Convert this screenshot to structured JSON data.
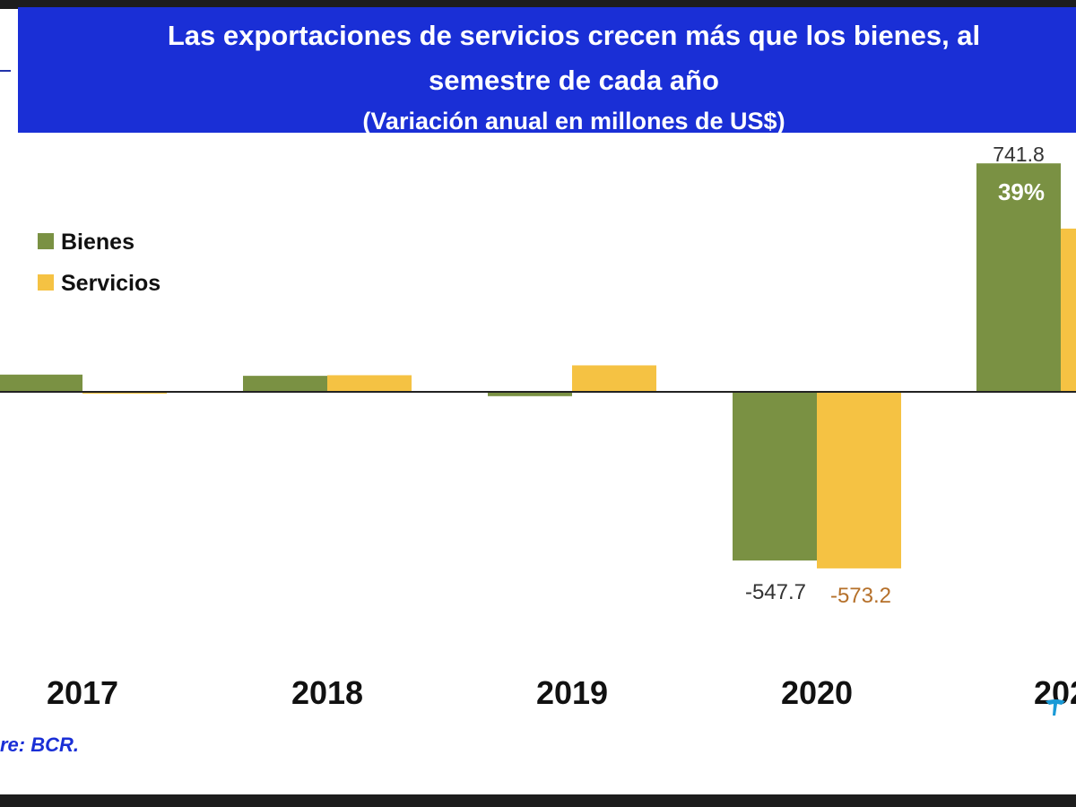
{
  "chart_data": {
    "type": "bar",
    "title": "Las exportaciones de servicios crecen más que los bienes, al",
    "subtitle": "semestre de cada año",
    "units_note": "(Variación anual en millones de US$)",
    "categories": [
      "2017",
      "2018",
      "2019",
      "2020",
      "202"
    ],
    "series": [
      {
        "name": "Bienes",
        "color": "#7a9143",
        "values": [
          56,
          52,
          -14,
          -547.7,
          741.8
        ]
      },
      {
        "name": "Servicios",
        "color": "#f5c243",
        "values": [
          -6,
          54,
          86,
          -573.2,
          530
        ]
      }
    ],
    "data_labels": {
      "bienes_2020": "-547.7",
      "servicios_2020": "-573.2",
      "bienes_2021": "741.8",
      "bienes_2021_pct": "39%"
    },
    "legend_position": "upper-left",
    "grid": false
  },
  "source": "re: BCR."
}
